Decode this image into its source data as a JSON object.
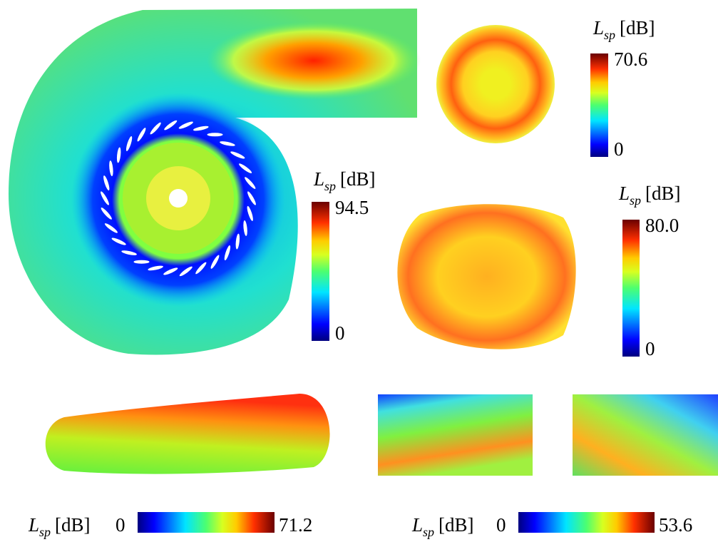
{
  "colorbars": [
    {
      "label": {
        "symbol": "L",
        "subscript": "sp",
        "unit": "[dB]"
      },
      "min": 0,
      "max": 94.5
    },
    {
      "label": {
        "symbol": "L",
        "subscript": "sp",
        "unit": "[dB]"
      },
      "min": 0,
      "max": 70.6
    },
    {
      "label": {
        "symbol": "L",
        "subscript": "sp",
        "unit": "[dB]"
      },
      "min": 0,
      "max": {
        "value": 80,
        "label": "80.0"
      }
    },
    {
      "label": {
        "symbol": "L",
        "subscript": "sp",
        "unit": "[dB]"
      },
      "min": 0,
      "max": 71.2
    },
    {
      "label": {
        "symbol": "L",
        "subscript": "sp",
        "unit": "[dB]"
      },
      "min": 0,
      "max": 53.6
    }
  ]
}
